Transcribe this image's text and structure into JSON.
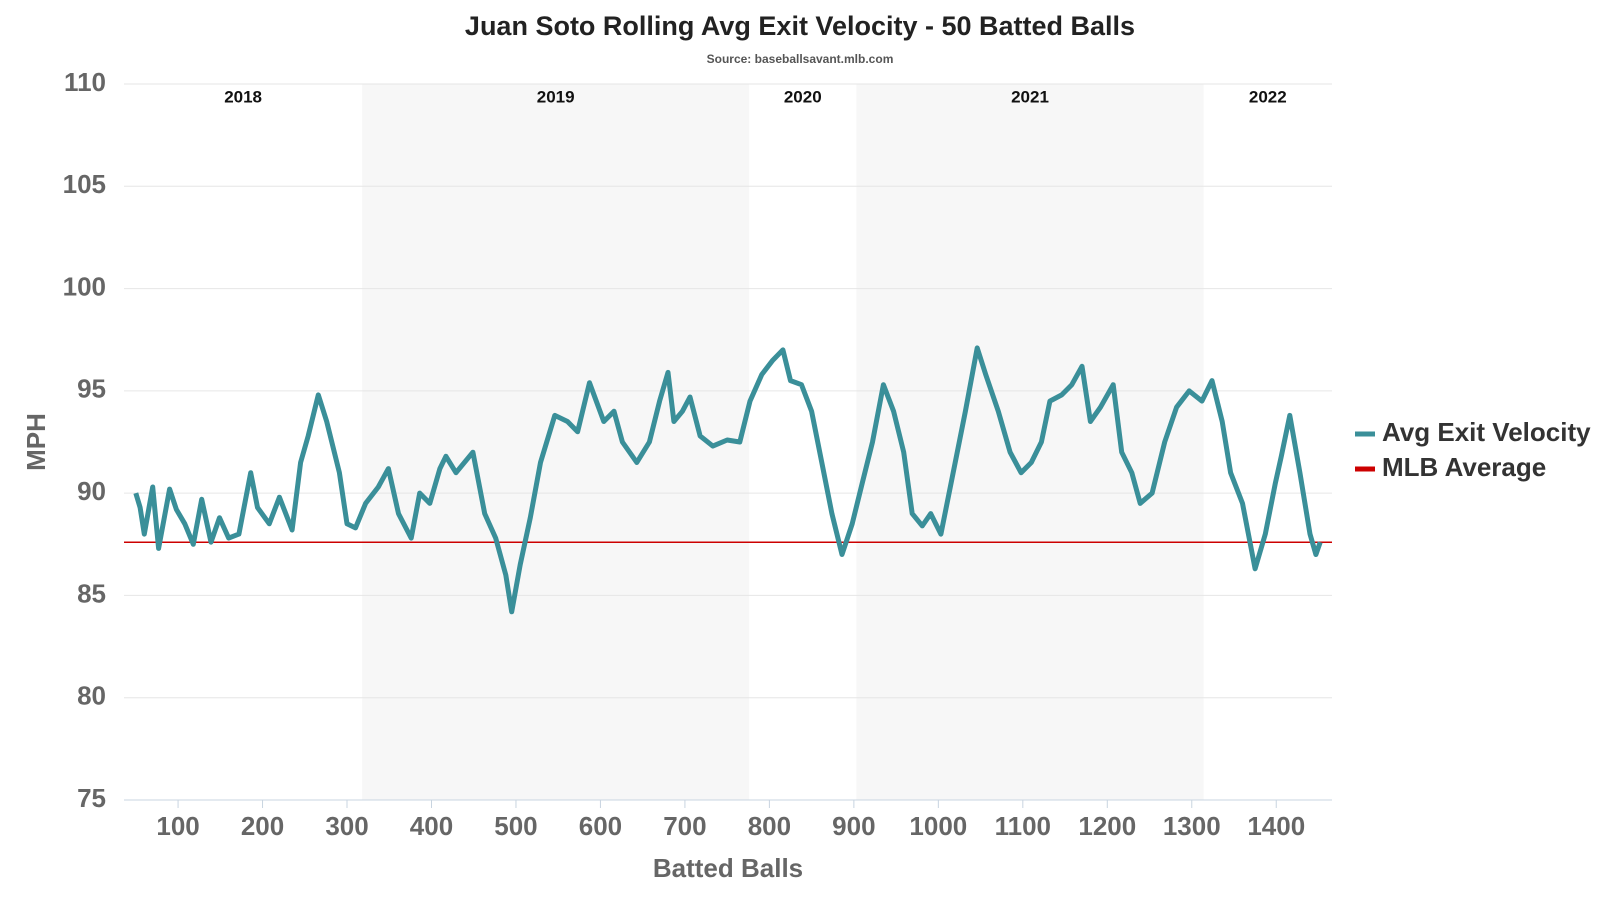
{
  "chart_data": {
    "type": "line",
    "title": "Juan Soto Rolling Avg Exit Velocity - 50 Batted Balls",
    "subtitle": "Source: baseballsavant.mlb.com",
    "xlabel": "Batted Balls",
    "ylabel": "MPH",
    "xlim": [
      36,
      1466
    ],
    "ylim": [
      75,
      110
    ],
    "xticks": [
      100,
      200,
      300,
      400,
      500,
      600,
      700,
      800,
      900,
      1000,
      1100,
      1200,
      1300,
      1400
    ],
    "yticks": [
      75,
      80,
      85,
      90,
      95,
      100,
      105,
      110
    ],
    "grid": true,
    "legend": "right",
    "periods": [
      {
        "label": "2018",
        "start": 36,
        "end": 318,
        "shaded": false
      },
      {
        "label": "2019",
        "start": 318,
        "end": 776,
        "shaded": true
      },
      {
        "label": "2020",
        "start": 776,
        "end": 903,
        "shaded": false
      },
      {
        "label": "2021",
        "start": 903,
        "end": 1314,
        "shaded": true
      },
      {
        "label": "2022",
        "start": 1314,
        "end": 1466,
        "shaded": false
      }
    ],
    "x": [
      50,
      55,
      60,
      70,
      77,
      90,
      98,
      108,
      118,
      128,
      139,
      149,
      160,
      172,
      186,
      194,
      208,
      220,
      235,
      245,
      254,
      266,
      276,
      291,
      300,
      310,
      322,
      337,
      349,
      361,
      376,
      386,
      398,
      410,
      417,
      429,
      449,
      463,
      476,
      488,
      495,
      505,
      517,
      529,
      546,
      561,
      573,
      587,
      604,
      616,
      626,
      643,
      658,
      670,
      680,
      687,
      697,
      706,
      718,
      733,
      750,
      765,
      777,
      791,
      804,
      816,
      825,
      838,
      850,
      862,
      874,
      886,
      898,
      910,
      922,
      935,
      947,
      959,
      969,
      981,
      991,
      1003,
      1020,
      1032,
      1046,
      1056,
      1071,
      1085,
      1098,
      1110,
      1122,
      1132,
      1146,
      1158,
      1170,
      1180,
      1192,
      1207,
      1217,
      1229,
      1239,
      1253,
      1268,
      1282,
      1297,
      1312,
      1324,
      1336,
      1346,
      1360,
      1375,
      1387,
      1399,
      1406,
      1416,
      1428,
      1440,
      1447,
      1452
    ],
    "series": [
      {
        "name": "Avg Exit Velocity",
        "color": "#3a8f99",
        "values": [
          90,
          89.3,
          88,
          90.3,
          87.3,
          90.2,
          89.2,
          88.5,
          87.5,
          89.7,
          87.6,
          88.8,
          87.8,
          88,
          91,
          89.3,
          88.5,
          89.8,
          88.2,
          91.5,
          92.8,
          94.8,
          93.5,
          91,
          88.5,
          88.3,
          89.5,
          90.3,
          91.2,
          89,
          87.8,
          90,
          89.5,
          91.2,
          91.8,
          91,
          92,
          89,
          87.8,
          86,
          84.2,
          86.5,
          88.8,
          91.5,
          93.8,
          93.5,
          93,
          95.4,
          93.5,
          94,
          92.5,
          91.5,
          92.5,
          94.5,
          95.9,
          93.5,
          94,
          94.7,
          92.8,
          92.3,
          92.6,
          92.5,
          94.5,
          95.8,
          96.5,
          97,
          95.5,
          95.3,
          94,
          91.5,
          89,
          87,
          88.5,
          90.5,
          92.5,
          95.3,
          94,
          92,
          89,
          88.4,
          89,
          88,
          91.5,
          94,
          97.1,
          95.8,
          94,
          92,
          91,
          91.5,
          92.5,
          94.5,
          94.8,
          95.3,
          96.2,
          93.5,
          94.2,
          95.3,
          92,
          91,
          89.5,
          90,
          92.5,
          94.2,
          95,
          94.5,
          95.5,
          93.5,
          91,
          89.5,
          86.3,
          88,
          90.5,
          91.8,
          93.8,
          91,
          88,
          87,
          87.6
        ]
      }
    ],
    "reference_lines": [
      {
        "name": "MLB Average",
        "color": "#cc0000",
        "value": 87.6
      }
    ]
  }
}
